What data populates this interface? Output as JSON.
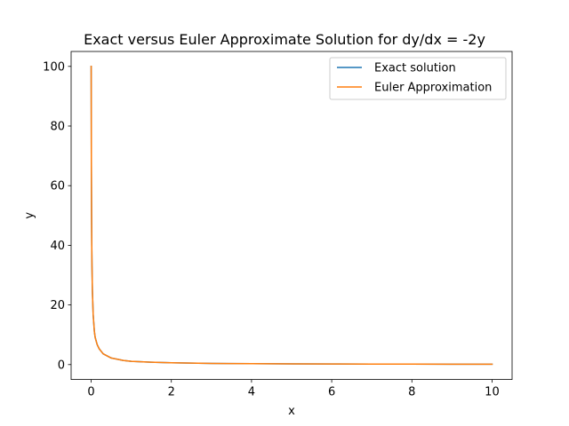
{
  "chart_data": {
    "type": "line",
    "title": "Exact versus Euler Approximate Solution for dy/dx = -2y",
    "xlabel": "x",
    "ylabel": "y",
    "xlim": [
      -0.5,
      10.5
    ],
    "ylim": [
      -5,
      105
    ],
    "x_ticks": [
      0,
      2,
      4,
      6,
      8,
      10
    ],
    "y_ticks": [
      0,
      20,
      40,
      60,
      80,
      100
    ],
    "grid": false,
    "legend_position": "top-right",
    "series": [
      {
        "name": "Exact solution",
        "color": "#1f77b4",
        "x": [
          0,
          0.005,
          0.01,
          0.015,
          0.02,
          0.03,
          0.05,
          0.08,
          0.1,
          0.15,
          0.2,
          0.3,
          0.5,
          0.8,
          1,
          1.5,
          2,
          3,
          4,
          5,
          6,
          7,
          8,
          9,
          10
        ],
        "y": [
          100,
          66.7,
          50,
          40,
          33.3,
          25,
          16.7,
          11.1,
          9.1,
          6.7,
          5.3,
          3.6,
          2.2,
          1.4,
          1.1,
          0.8,
          0.6,
          0.4,
          0.3,
          0.25,
          0.2,
          0.17,
          0.15,
          0.13,
          0.12
        ]
      },
      {
        "name": "Euler Approximation",
        "color": "#ff7f0e",
        "x": [
          0,
          0.005,
          0.01,
          0.015,
          0.02,
          0.03,
          0.05,
          0.08,
          0.1,
          0.15,
          0.2,
          0.3,
          0.5,
          0.8,
          1,
          1.5,
          2,
          3,
          4,
          5,
          6,
          7,
          8,
          9,
          10
        ],
        "y": [
          100,
          66.7,
          50,
          40,
          33.3,
          25,
          16.7,
          11.1,
          9.1,
          6.7,
          5.3,
          3.6,
          2.2,
          1.4,
          1.1,
          0.8,
          0.6,
          0.4,
          0.3,
          0.25,
          0.2,
          0.17,
          0.15,
          0.13,
          0.12
        ]
      }
    ]
  }
}
